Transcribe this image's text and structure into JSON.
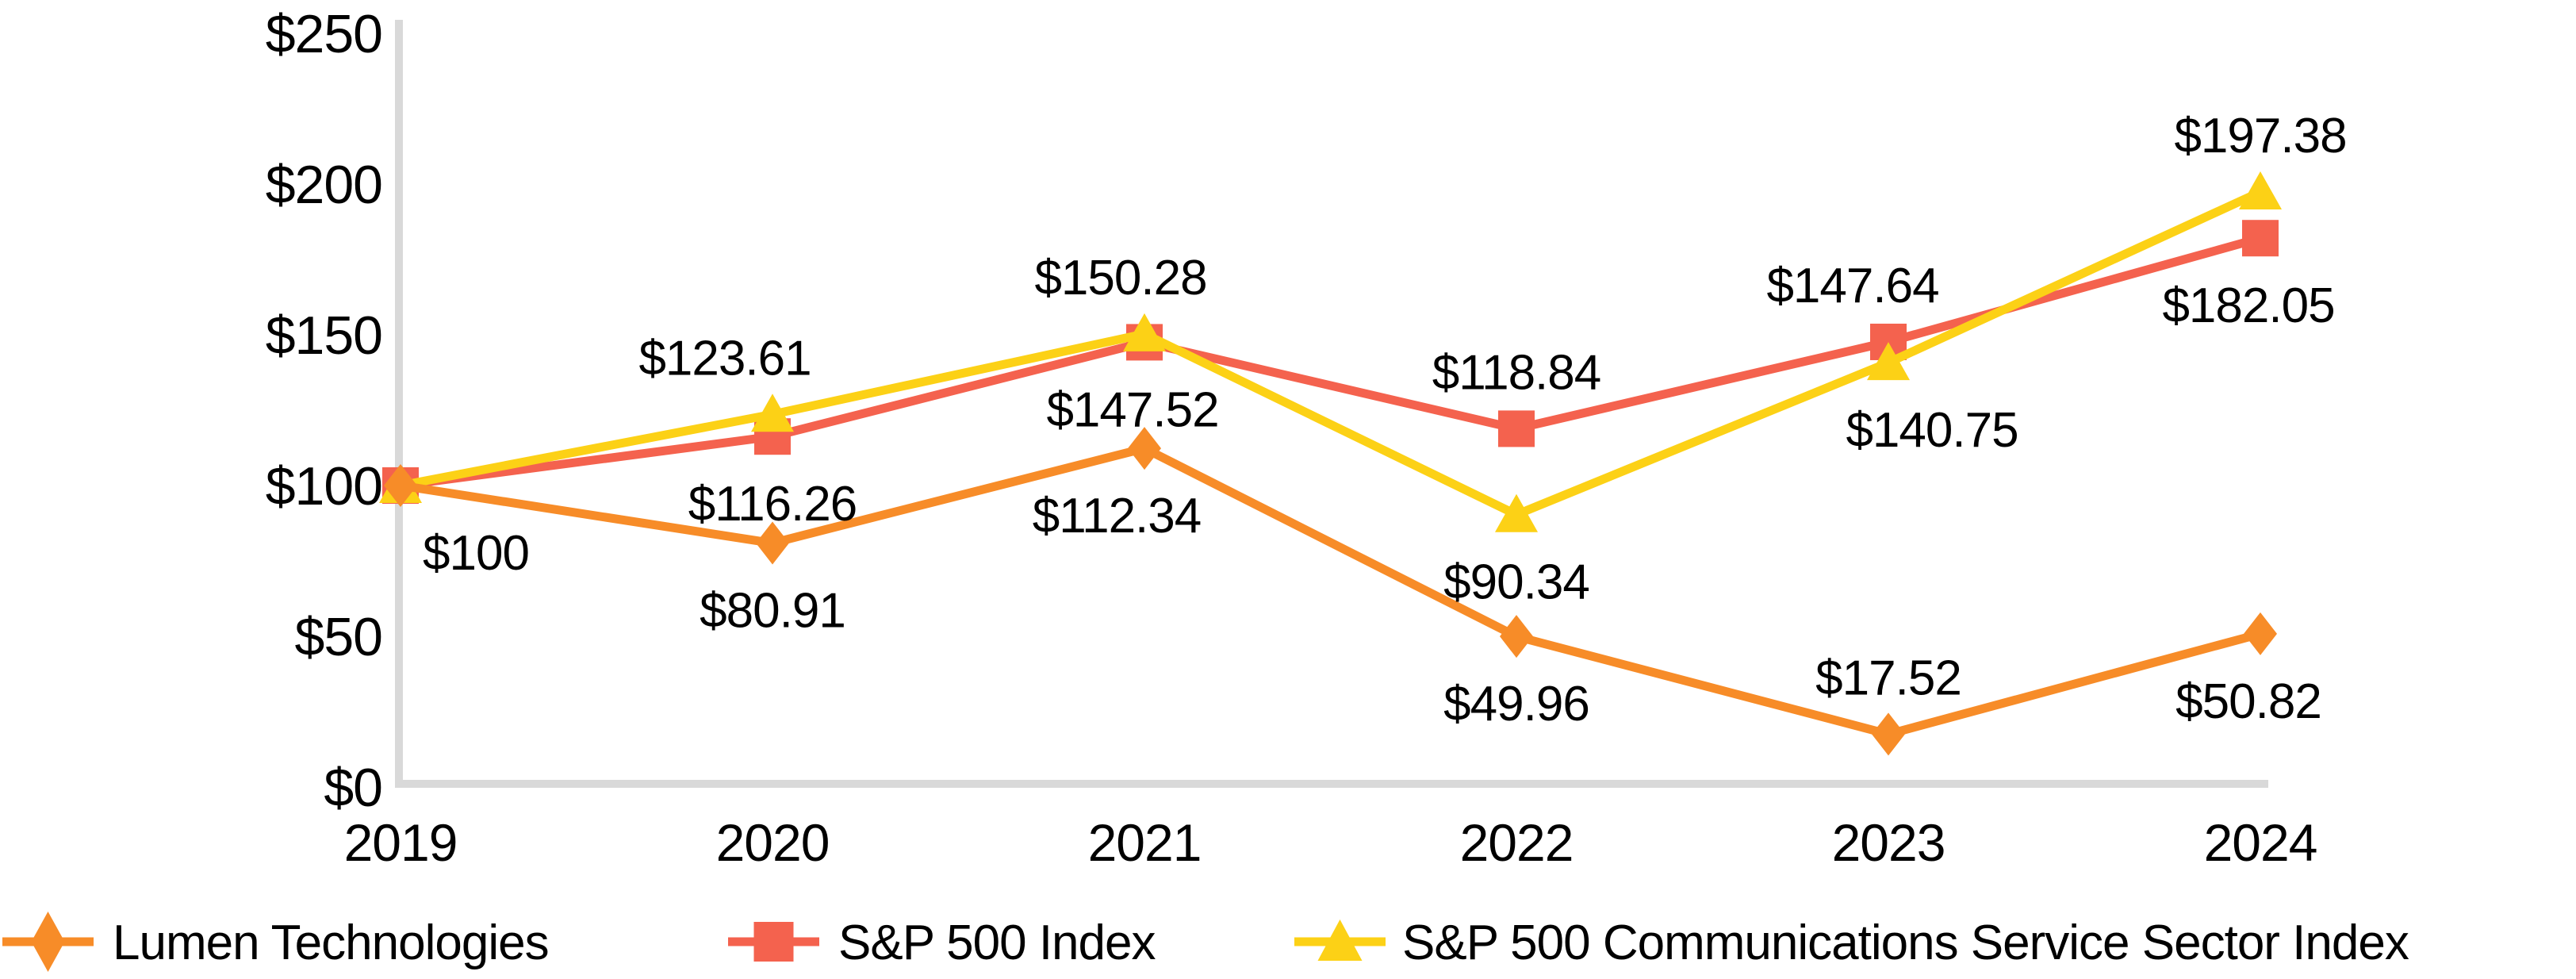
{
  "chart_data": {
    "type": "line",
    "title": "",
    "categories": [
      "2019",
      "2020",
      "2021",
      "2022",
      "2023",
      "2024"
    ],
    "series": [
      {
        "name": "Lumen Technologies",
        "color": "#F78C28",
        "marker": "diamond",
        "values": [
          100,
          80.91,
          112.34,
          49.96,
          17.52,
          50.82
        ],
        "point_labels": [
          "$100",
          "$80.91",
          "$112.34",
          "$49.96",
          "$17.52",
          "$50.82"
        ],
        "label_positions": [
          "below",
          "below",
          "below",
          "below",
          "above",
          "below"
        ],
        "label_dx": [
          95,
          0,
          -35,
          0,
          0,
          -15
        ]
      },
      {
        "name": "S&P 500 Index",
        "color": "#F4624E",
        "marker": "square",
        "values": [
          100,
          116.26,
          147.52,
          118.84,
          147.64,
          182.05
        ],
        "point_labels": [
          "",
          "$116.26",
          "$147.52",
          "$118.84",
          "$147.64",
          "$182.05"
        ],
        "label_positions": [
          "below",
          "below",
          "below",
          "above",
          "above",
          "below"
        ],
        "label_dx": [
          0,
          0,
          -15,
          0,
          -45,
          -15
        ]
      },
      {
        "name": "S&P 500 Communications Service Sector Index",
        "color": "#FCD116",
        "marker": "triangle",
        "values": [
          100,
          123.61,
          150.28,
          90.34,
          140.75,
          197.38
        ],
        "point_labels": [
          "",
          "$123.61",
          "$150.28",
          "$90.34",
          "$140.75",
          "$197.38"
        ],
        "label_positions": [
          "above",
          "above",
          "above",
          "below",
          "below",
          "above"
        ],
        "label_dx": [
          0,
          -60,
          -30,
          0,
          55,
          0
        ]
      }
    ],
    "draw_order": [
      1,
      2,
      0
    ],
    "y_ticks": [
      {
        "value": 0,
        "label": "$0"
      },
      {
        "value": 50,
        "label": "$50"
      },
      {
        "value": 100,
        "label": "$100"
      },
      {
        "value": 150,
        "label": "$150"
      },
      {
        "value": 200,
        "label": "$200"
      },
      {
        "value": 250,
        "label": "$250"
      }
    ],
    "ylim": [
      0,
      250
    ],
    "grid": false,
    "legend_position": "bottom",
    "colors": {
      "axis": "#D9D9D9",
      "text": "#000000",
      "background": "#FFFFFF"
    }
  }
}
